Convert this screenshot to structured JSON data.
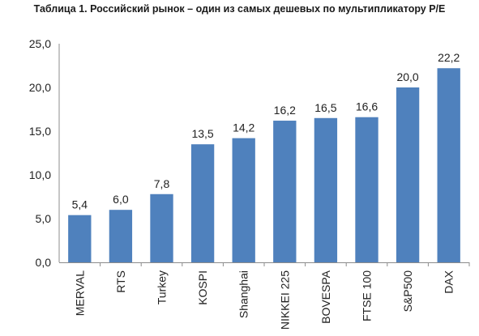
{
  "chart_data": {
    "type": "bar",
    "title": "Таблица 1. Российский рынок – один из самых дешевых по мультипликатору P/E",
    "categories": [
      "MERVAL",
      "RTS",
      "Turkey",
      "KOSPI",
      "Shanghai",
      "NIKKEI 225",
      "BOVESPA",
      "FTSE 100",
      "S&P500",
      "DAX"
    ],
    "values": [
      5.4,
      6.0,
      7.8,
      13.5,
      14.2,
      16.2,
      16.5,
      16.6,
      20.0,
      22.2
    ],
    "data_labels": [
      "5,4",
      "6,0",
      "7,8",
      "13,5",
      "14,2",
      "16,2",
      "16,5",
      "16,6",
      "20,0",
      "22,2"
    ],
    "ylim": [
      0,
      25
    ],
    "yticks": [
      "0,0",
      "5,0",
      "10,0",
      "15,0",
      "20,0",
      "25,0"
    ],
    "xlabel": "",
    "ylabel": "",
    "grid": false,
    "bar_color": "#4f81bd",
    "category_label_rotation": "vertical"
  }
}
